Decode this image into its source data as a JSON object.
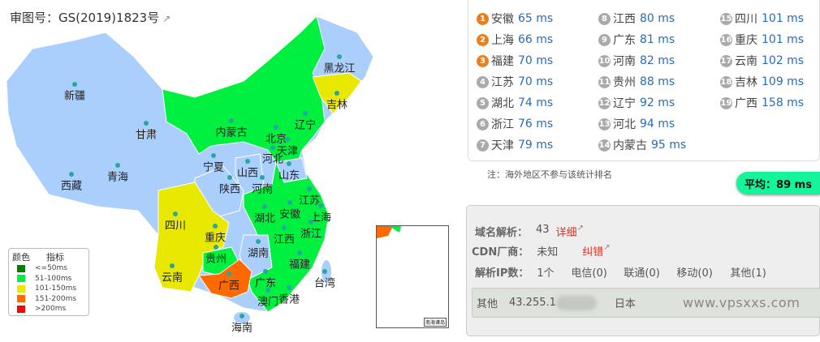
{
  "map": {
    "approval_number": "审图号：GS(2019)1823号",
    "external_icon": "external-link-icon",
    "colors": {
      "no_data": "#aacffc",
      "good": "#00f040",
      "fair": "#e8e800",
      "poor": "#ff6a00",
      "excellent": "#008000",
      "bad": "#ff0000"
    },
    "provinces": [
      {
        "name": "新疆",
        "status": "no_data"
      },
      {
        "name": "西藏",
        "status": "no_data"
      },
      {
        "name": "青海",
        "status": "no_data"
      },
      {
        "name": "甘肃",
        "status": "no_data"
      },
      {
        "name": "内蒙古",
        "status": "good"
      },
      {
        "name": "黑龙江",
        "status": "no_data"
      },
      {
        "name": "吉林",
        "status": "fair"
      },
      {
        "name": "辽宁",
        "status": "good"
      },
      {
        "name": "北京",
        "status": "no_data"
      },
      {
        "name": "天津",
        "status": "good"
      },
      {
        "name": "河北",
        "status": "good"
      },
      {
        "name": "宁夏",
        "status": "no_data"
      },
      {
        "name": "山西",
        "status": "no_data"
      },
      {
        "name": "山东",
        "status": "no_data"
      },
      {
        "name": "陕西",
        "status": "no_data"
      },
      {
        "name": "河南",
        "status": "good"
      },
      {
        "name": "江苏",
        "status": "good"
      },
      {
        "name": "上海",
        "status": "good"
      },
      {
        "name": "安徽",
        "status": "good"
      },
      {
        "name": "湖北",
        "status": "good"
      },
      {
        "name": "四川",
        "status": "fair"
      },
      {
        "name": "重庆",
        "status": "fair"
      },
      {
        "name": "浙江",
        "status": "good"
      },
      {
        "name": "江西",
        "status": "good"
      },
      {
        "name": "湖南",
        "status": "no_data"
      },
      {
        "name": "贵州",
        "status": "good"
      },
      {
        "name": "福建",
        "status": "good"
      },
      {
        "name": "云南",
        "status": "fair"
      },
      {
        "name": "广西",
        "status": "poor"
      },
      {
        "name": "广东",
        "status": "good"
      },
      {
        "name": "台湾",
        "status": "no_data"
      },
      {
        "name": "澳门",
        "status": "no_data"
      },
      {
        "name": "香港",
        "status": "no_data"
      },
      {
        "name": "海南",
        "status": "no_data"
      }
    ],
    "legend": {
      "header_color": "颜色",
      "header_metric": "指标",
      "items": [
        {
          "label": "<=50ms",
          "color": "#008000"
        },
        {
          "label": "51-100ms",
          "color": "#00f040"
        },
        {
          "label": "101-150ms",
          "color": "#e8e800"
        },
        {
          "label": "151-200ms",
          "color": "#ff6a00"
        },
        {
          "label": ">200ms",
          "color": "#ff0000"
        }
      ]
    },
    "inset_label": "南海诸岛"
  },
  "ranking": [
    {
      "rank": "1",
      "name": "安徽",
      "value": "65 ms"
    },
    {
      "rank": "2",
      "name": "上海",
      "value": "66 ms"
    },
    {
      "rank": "3",
      "name": "福建",
      "value": "70 ms"
    },
    {
      "rank": "4",
      "name": "江苏",
      "value": "70 ms"
    },
    {
      "rank": "5",
      "name": "湖北",
      "value": "74 ms"
    },
    {
      "rank": "6",
      "name": "浙江",
      "value": "76 ms"
    },
    {
      "rank": "7",
      "name": "天津",
      "value": "79 ms"
    },
    {
      "rank": "8",
      "name": "江西",
      "value": "80 ms"
    },
    {
      "rank": "9",
      "name": "广东",
      "value": "81 ms"
    },
    {
      "rank": "10",
      "name": "河南",
      "value": "82 ms"
    },
    {
      "rank": "11",
      "name": "贵州",
      "value": "88 ms"
    },
    {
      "rank": "12",
      "name": "辽宁",
      "value": "92 ms"
    },
    {
      "rank": "13",
      "name": "河北",
      "value": "94 ms"
    },
    {
      "rank": "14",
      "name": "内蒙古",
      "value": "95 ms"
    },
    {
      "rank": "15",
      "name": "四川",
      "value": "101 ms"
    },
    {
      "rank": "16",
      "name": "重庆",
      "value": "101 ms"
    },
    {
      "rank": "17",
      "name": "云南",
      "value": "102 ms"
    },
    {
      "rank": "18",
      "name": "吉林",
      "value": "109 ms"
    },
    {
      "rank": "19",
      "name": "广西",
      "value": "158 ms"
    }
  ],
  "note": "注：海外地区不参与该统计排名",
  "average": "平均：89 ms",
  "dns": {
    "resolve_label": "域名解析：",
    "resolve_count": "43",
    "detail_link": "详细",
    "cdn_label": "CDN厂商：",
    "cdn_value": "未知",
    "correct_link": "纠错",
    "ip_count_label": "解析IP数：",
    "ip_count": "1个",
    "telecom": "电信(0)",
    "unicom": "联通(0)",
    "mobile": "移动(0)",
    "other": "其他(1)",
    "ip_row": {
      "isp": "其他",
      "ip": "43.255.1",
      "location": "日本"
    },
    "watermark": "www.vpsxxs.com"
  }
}
